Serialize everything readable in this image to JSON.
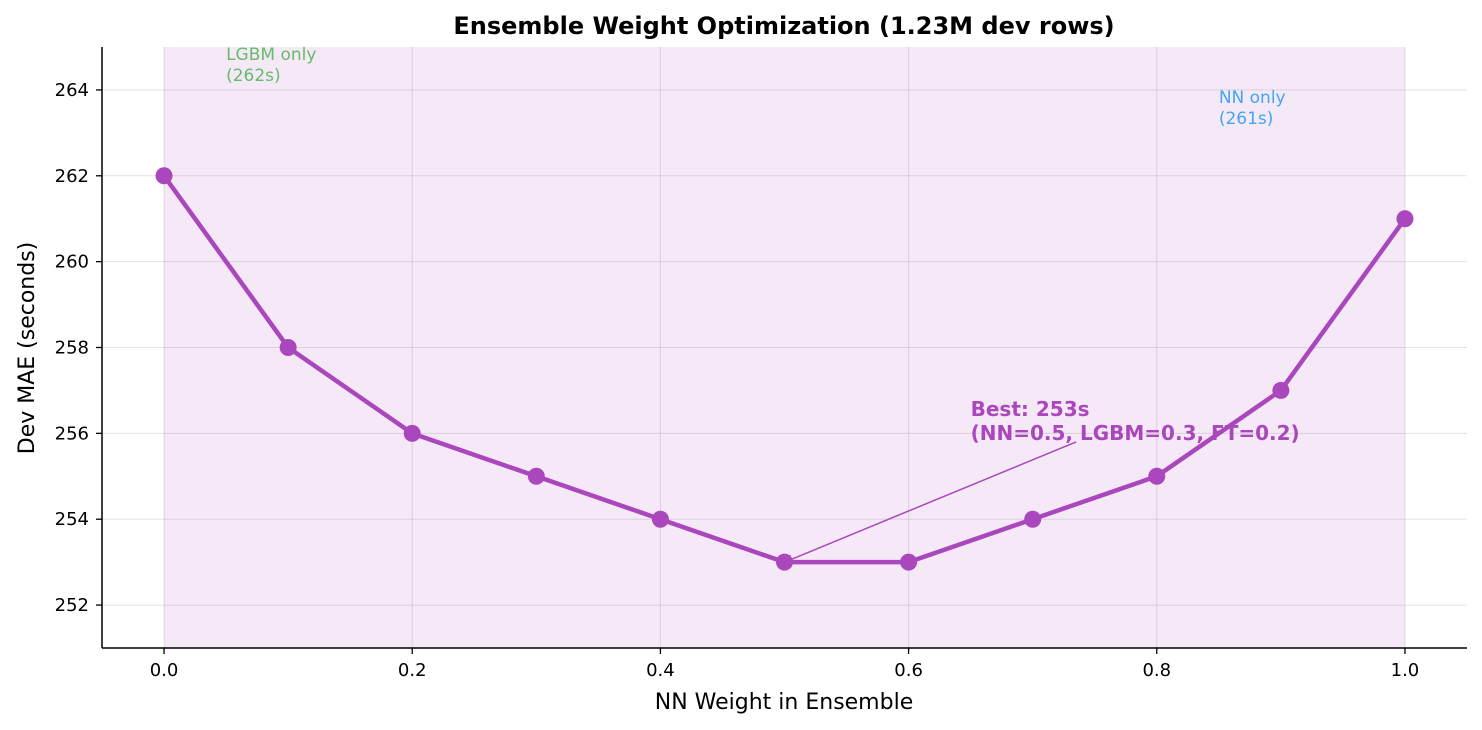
{
  "chart_data": {
    "type": "line",
    "title": "Ensemble Weight Optimization (1.23M dev rows)",
    "xlabel": "NN Weight in Ensemble",
    "ylabel": "Dev MAE (seconds)",
    "xlim": [
      -0.05,
      1.05
    ],
    "ylim": [
      251,
      265
    ],
    "x_ticks": [
      0.0,
      0.2,
      0.4,
      0.6,
      0.8,
      1.0
    ],
    "x_tick_labels": [
      "0.0",
      "0.2",
      "0.4",
      "0.6",
      "0.8",
      "1.0"
    ],
    "y_ticks": [
      252,
      254,
      256,
      258,
      260,
      262,
      264
    ],
    "y_tick_labels": [
      "252",
      "254",
      "256",
      "258",
      "260",
      "262",
      "264"
    ],
    "grid": true,
    "series": [
      {
        "x": [
          0.0,
          0.1,
          0.2,
          0.3,
          0.4,
          0.5,
          0.6,
          0.7,
          0.8,
          0.9,
          1.0
        ],
        "y": [
          262,
          258,
          256,
          255,
          254,
          253,
          253,
          254,
          255,
          257,
          261
        ],
        "color": "#ab47bc"
      }
    ],
    "shaded_region": {
      "x": [
        0.0,
        1.0
      ],
      "color": "#ab47bc"
    },
    "annotations": {
      "lgbm": {
        "lines": [
          "LGBM only",
          "(262s)"
        ],
        "color": "#66bb6a",
        "x": 0.05,
        "y": 264.7
      },
      "nn": {
        "lines": [
          "NN only",
          "(261s)"
        ],
        "color": "#42a5f5",
        "x": 0.85,
        "y": 263.7
      },
      "best": {
        "lines": [
          "Best: 253s",
          "(NN=0.5, LGBM=0.3, FT=0.2)"
        ],
        "color": "#ab47bc",
        "x": 0.65,
        "y": 256.4,
        "arrow_to": [
          0.5,
          253
        ],
        "arrow_from": [
          0.735,
          255.8
        ]
      }
    }
  }
}
